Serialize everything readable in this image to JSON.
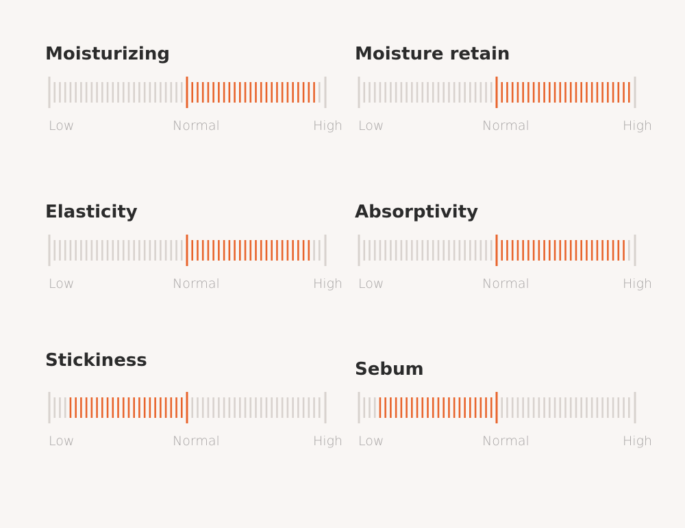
{
  "colors": {
    "background": "#f9f6f4",
    "tick_inactive": "#d8d2ce",
    "tick_active": "#e8642c",
    "label": "#a6a3a3",
    "title": "#2b2b2b"
  },
  "scale": {
    "ticks_per_side": 26,
    "low_label": "Low",
    "normal_label": "Normal",
    "high_label": "High"
  },
  "metrics": [
    {
      "title": "Moisturizing",
      "active_from": 0,
      "active_to": 0.95
    },
    {
      "title": "Moisture retain",
      "active_from": 0,
      "active_to": 0.98
    },
    {
      "title": "Elasticity",
      "active_from": 0,
      "active_to": 0.92
    },
    {
      "title": "Absorptivity",
      "active_from": 0,
      "active_to": 0.94
    },
    {
      "title": "Stickiness",
      "active_from": -0.85,
      "active_to": 0
    },
    {
      "title": "Sebum",
      "active_from": -0.85,
      "active_to": 0
    }
  ]
}
